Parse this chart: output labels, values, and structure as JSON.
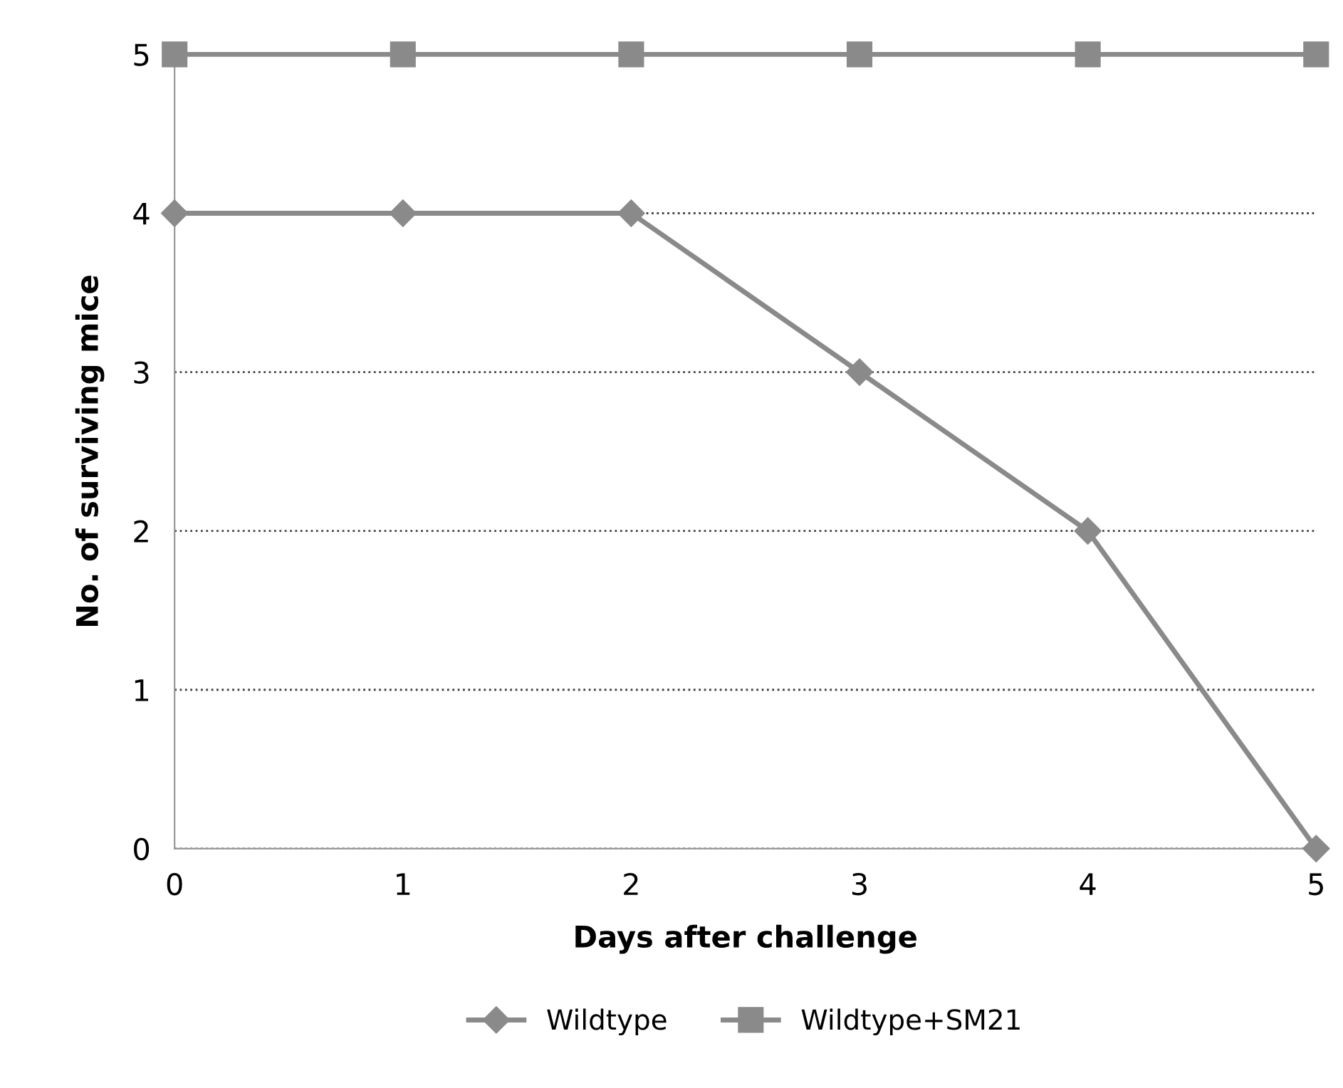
{
  "chart_data": {
    "type": "line",
    "xlabel": "Days after challenge",
    "ylabel": "No. of surviving mice",
    "x": [
      0,
      1,
      2,
      3,
      4,
      5
    ],
    "xlim": [
      0,
      5
    ],
    "xticks": [
      0,
      1,
      2,
      3,
      4,
      5
    ],
    "ylim": [
      0,
      5
    ],
    "yticks": [
      0,
      1,
      2,
      3,
      4,
      5
    ],
    "grid": "y",
    "legend": "bottom",
    "line_style": "solid",
    "series": [
      {
        "name": "Wildtype",
        "color": "#8a8a8a",
        "marker": "diamond",
        "values": [
          4,
          4,
          4,
          3,
          2,
          0
        ]
      },
      {
        "name": "Wildtype+SM21",
        "color": "#8a8a8a",
        "marker": "square",
        "values": [
          5,
          5,
          5,
          5,
          5,
          5
        ]
      }
    ]
  }
}
